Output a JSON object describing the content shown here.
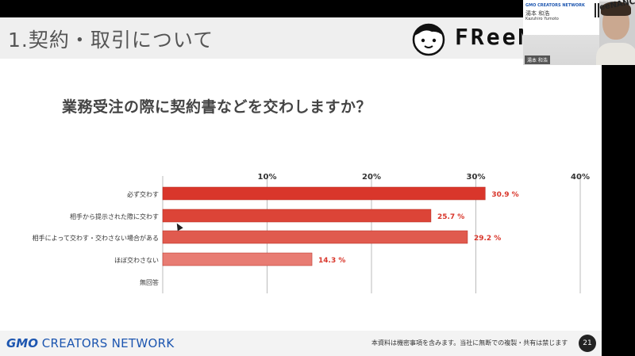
{
  "slide": {
    "title": "1.契約・取引について",
    "brand_word": "FReeN",
    "question": "業務受注の際に契約書などを交わしますか？"
  },
  "chart_data": {
    "type": "bar",
    "orientation": "horizontal",
    "categories": [
      "必ず交わす",
      "相手から提示された際に交わす",
      "相手によって交わす・交わさない場合がある",
      "ほぼ交わさない",
      "無回答"
    ],
    "values": [
      30.9,
      25.7,
      29.2,
      14.3,
      null
    ],
    "value_labels": [
      "30.9 %",
      "25.7 %",
      "29.2 %",
      "14.3 %",
      ""
    ],
    "ticks": [
      "10%",
      "20%",
      "30%",
      "40%"
    ],
    "xlim": [
      0,
      40
    ],
    "grid": true,
    "colors": [
      "#d9362b",
      "#dc4437",
      "#e05a4e",
      "#e87c73"
    ],
    "label_color": "#d9362b"
  },
  "footer": {
    "company_mark": "GMO",
    "company_name": "CREATORS NETWORK",
    "confidential": "本資料は機密事項を含みます。当社に無断での複製・共有は禁じます",
    "page": "21"
  },
  "webcam": {
    "name_badge": "湯本 和浩",
    "card_brand": "GMO CREATORS NETWORK",
    "card_name": "湯本 和浩",
    "card_romaji": "Kazuhiro Yumoto",
    "feen": "eeNANCE"
  }
}
